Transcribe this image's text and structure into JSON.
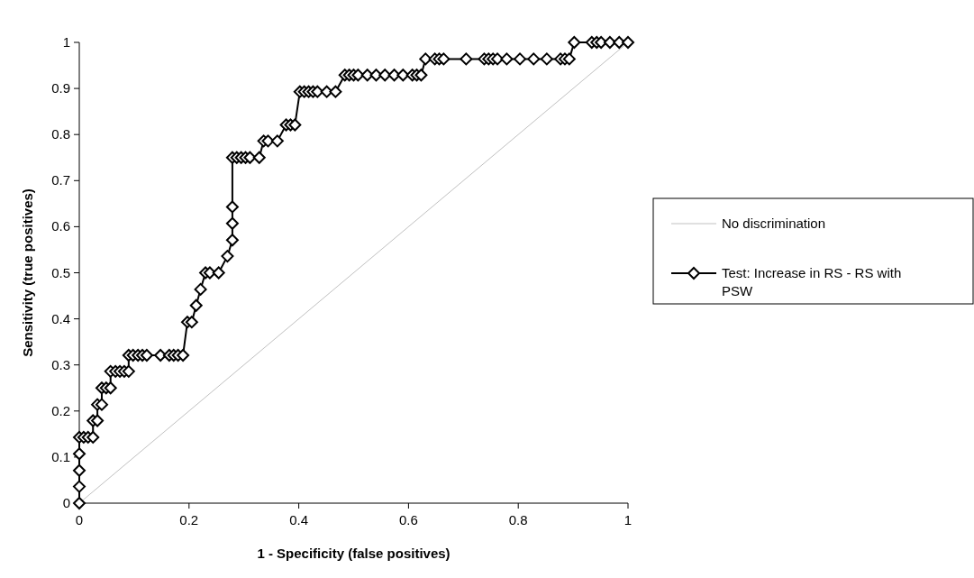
{
  "chart_data": {
    "type": "line",
    "xlabel": "1 - Specificity (false positives)",
    "ylabel": "Sensitivity (true positives)",
    "xlim": [
      0,
      1
    ],
    "ylim": [
      0,
      1
    ],
    "xticks": [
      0,
      0.2,
      0.4,
      0.6,
      0.8,
      1
    ],
    "yticks": [
      0,
      0.1,
      0.2,
      0.3,
      0.4,
      0.5,
      0.6,
      0.7,
      0.8,
      0.9,
      1
    ],
    "grid": false,
    "legend": "right",
    "series": [
      {
        "name": "No discrimination",
        "color": "#c0c0c0",
        "marker": "none",
        "x": [
          0,
          1
        ],
        "values": [
          0,
          1
        ]
      },
      {
        "name": "Test: Increase in RS - RS with PSW",
        "color": "#000000",
        "marker": "diamond",
        "x": [
          0,
          0,
          0,
          0,
          0,
          0.008,
          0.016,
          0.025,
          0.025,
          0.033,
          0.033,
          0.041,
          0.041,
          0.049,
          0.057,
          0.057,
          0.066,
          0.074,
          0.082,
          0.09,
          0.09,
          0.098,
          0.107,
          0.115,
          0.123,
          0.148,
          0.164,
          0.172,
          0.18,
          0.189,
          0.197,
          0.205,
          0.213,
          0.221,
          0.23,
          0.238,
          0.254,
          0.27,
          0.279,
          0.279,
          0.279,
          0.279,
          0.287,
          0.295,
          0.303,
          0.311,
          0.328,
          0.336,
          0.344,
          0.361,
          0.377,
          0.385,
          0.393,
          0.402,
          0.41,
          0.418,
          0.426,
          0.434,
          0.451,
          0.467,
          0.484,
          0.492,
          0.5,
          0.508,
          0.525,
          0.541,
          0.557,
          0.574,
          0.59,
          0.607,
          0.615,
          0.623,
          0.631,
          0.648,
          0.656,
          0.664,
          0.705,
          0.738,
          0.746,
          0.754,
          0.762,
          0.779,
          0.803,
          0.828,
          0.852,
          0.877,
          0.885,
          0.893,
          0.902,
          0.934,
          0.943,
          0.951,
          0.967,
          0.984,
          1
        ],
        "values": [
          0,
          0.036,
          0.071,
          0.107,
          0.143,
          0.143,
          0.143,
          0.143,
          0.179,
          0.179,
          0.214,
          0.214,
          0.25,
          0.25,
          0.25,
          0.286,
          0.286,
          0.286,
          0.286,
          0.286,
          0.321,
          0.321,
          0.321,
          0.321,
          0.321,
          0.321,
          0.321,
          0.321,
          0.321,
          0.321,
          0.393,
          0.393,
          0.429,
          0.464,
          0.5,
          0.5,
          0.5,
          0.536,
          0.571,
          0.607,
          0.643,
          0.75,
          0.75,
          0.75,
          0.75,
          0.75,
          0.75,
          0.786,
          0.786,
          0.786,
          0.821,
          0.821,
          0.821,
          0.893,
          0.893,
          0.893,
          0.893,
          0.893,
          0.893,
          0.893,
          0.929,
          0.929,
          0.929,
          0.929,
          0.929,
          0.929,
          0.929,
          0.929,
          0.929,
          0.929,
          0.929,
          0.929,
          0.964,
          0.964,
          0.964,
          0.964,
          0.964,
          0.964,
          0.964,
          0.964,
          0.964,
          0.964,
          0.964,
          0.964,
          0.964,
          0.964,
          0.964,
          0.964,
          1,
          1,
          1,
          1,
          1,
          1,
          1
        ]
      }
    ]
  }
}
